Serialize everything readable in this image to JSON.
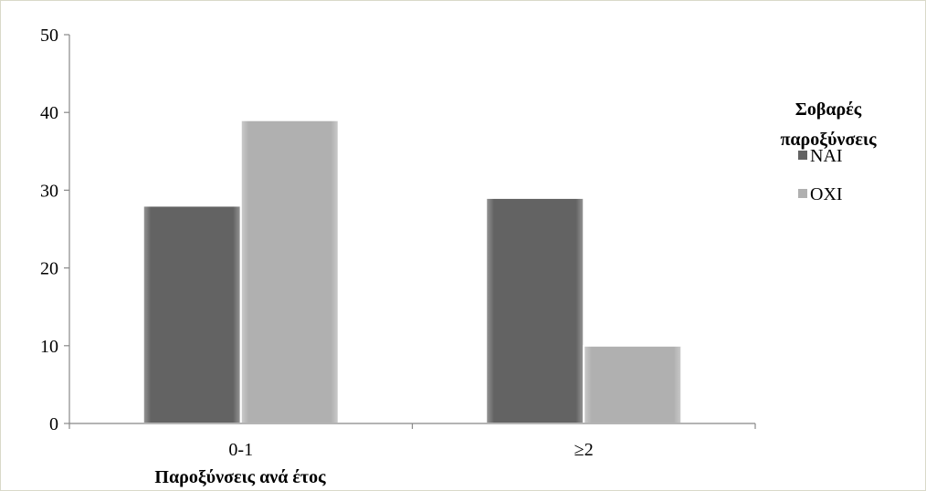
{
  "chart_data": {
    "type": "bar",
    "title": "",
    "xlabel": "Παροξύνσεις ανά έτος",
    "ylabel": "",
    "categories": [
      "0-1",
      "≥2"
    ],
    "series": [
      {
        "name": "ΝΑΙ",
        "values": [
          28,
          29
        ],
        "color": "#636363"
      },
      {
        "name": "ΟΧΙ",
        "values": [
          39,
          10
        ],
        "color": "#b0b0b0"
      }
    ],
    "ylim": [
      0,
      50
    ],
    "yticks": [
      0,
      10,
      20,
      30,
      40,
      50
    ],
    "grid": false,
    "legend": {
      "title_lines": [
        "Σοβαρές",
        "παροξύνσεις"
      ],
      "placement": "right"
    }
  }
}
